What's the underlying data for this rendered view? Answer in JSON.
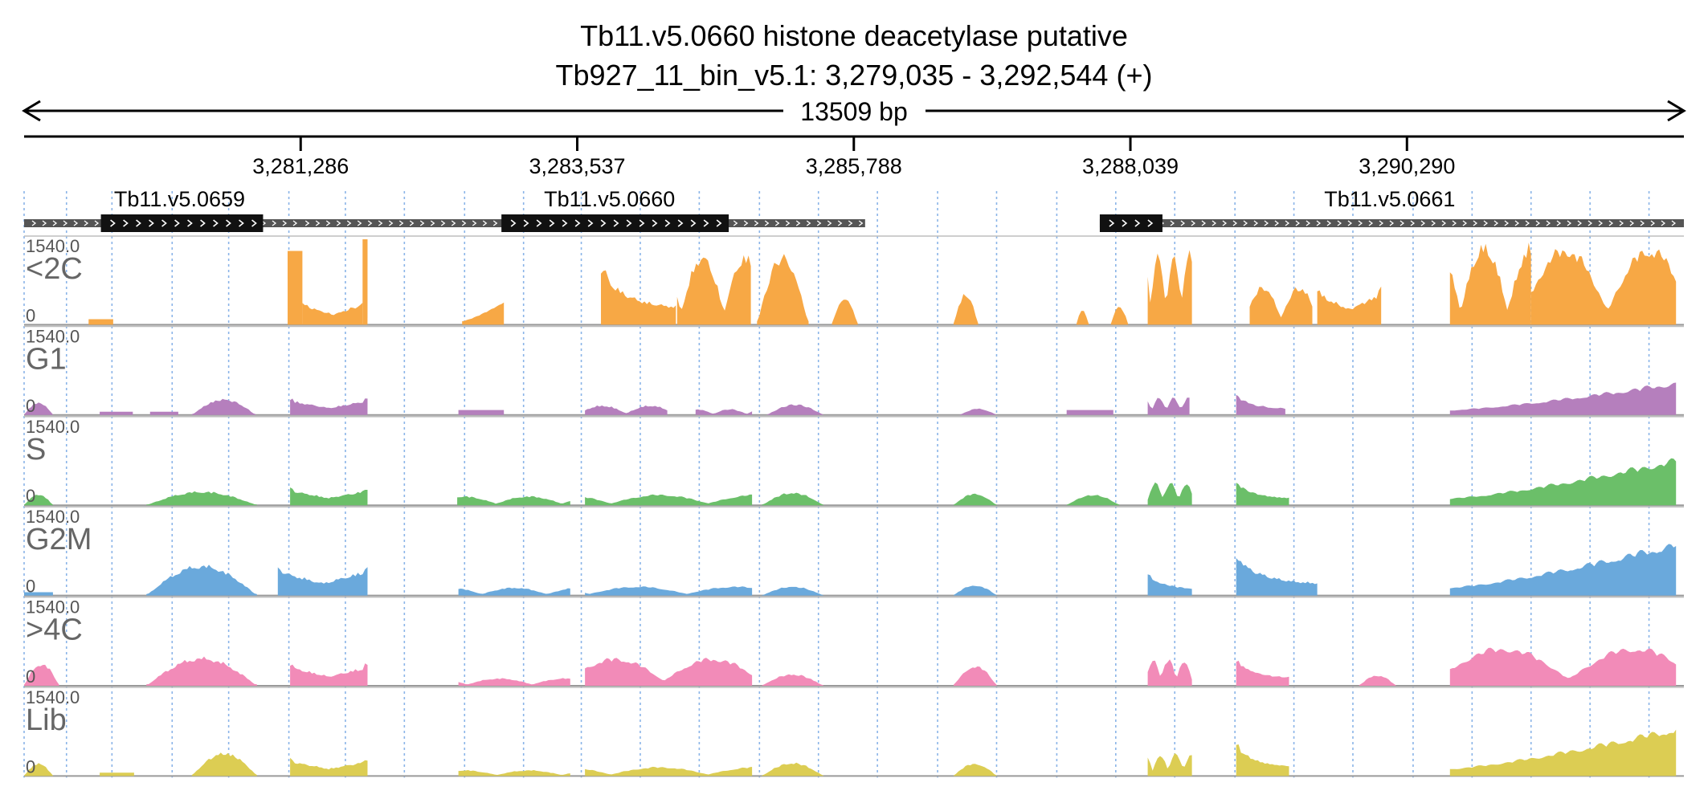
{
  "header": {
    "title": "Tb11.v5.0660  histone deacetylase  putative",
    "subtitle": "Tb927_11_bin_v5.1: 3,279,035 - 3,292,544 (+)",
    "span_label": "13509 bp"
  },
  "chart_data": {
    "type": "area",
    "region": {
      "chrom": "Tb927_11_bin_v5.1",
      "start": 3279035,
      "end": 3292544,
      "strand": "+"
    },
    "x_ticks": [
      {
        "pos": 3281286,
        "label": "3,281,286"
      },
      {
        "pos": 3283537,
        "label": "3,283,537"
      },
      {
        "pos": 3285788,
        "label": "3,285,788"
      },
      {
        "pos": 3288039,
        "label": "3,288,039"
      },
      {
        "pos": 3290290,
        "label": "3,290,290"
      }
    ],
    "genes": [
      {
        "name": "Tb11.v5.0659",
        "start": 3279035,
        "end": 3281350,
        "cds_start": 3279660,
        "cds_end": 3280980,
        "label_pos": 3280300
      },
      {
        "name": "Tb11.v5.0660",
        "start": 3281260,
        "end": 3285880,
        "cds_start": 3282920,
        "cds_end": 3284770,
        "label_pos": 3283800
      },
      {
        "name": "Tb11.v5.0661",
        "start": 3287790,
        "end": 3292544,
        "cds_start": 3287790,
        "cds_end": 3288300,
        "label_pos": 3290150
      }
    ],
    "guide_positions": [
      3279380,
      3279750,
      3280240,
      3280700,
      3281190,
      3281650,
      3282130,
      3282620,
      3283100,
      3283570,
      3284050,
      3284530,
      3285020,
      3285500,
      3285980,
      3286470,
      3286950,
      3287440,
      3287920,
      3288400,
      3288890,
      3289370,
      3289850,
      3290340,
      3290820,
      3291300,
      3291780,
      3292260
    ],
    "y_max_label": "1540.0",
    "y_min_label": "0",
    "y_range": [
      0,
      1540
    ],
    "series": [
      {
        "name": "<2C",
        "color": "#f7a845",
        "segments": [
          {
            "start": 3279560,
            "end": 3279760,
            "peak": 100,
            "shape": "flat"
          },
          {
            "start": 3281180,
            "end": 3281300,
            "peak": 1330,
            "shape": "flat"
          },
          {
            "start": 3281300,
            "end": 3281790,
            "peak": 460,
            "shape": "valley"
          },
          {
            "start": 3281790,
            "end": 3281830,
            "peak": 1540,
            "shape": "flat"
          },
          {
            "start": 3282600,
            "end": 3282940,
            "peak": 470,
            "shape": "ramp-up"
          },
          {
            "start": 3283730,
            "end": 3284340,
            "peak": 1050,
            "shape": "front"
          },
          {
            "start": 3284350,
            "end": 3284950,
            "peak": 1300,
            "shape": "bumps"
          },
          {
            "start": 3285000,
            "end": 3285420,
            "peak": 1300,
            "shape": "hump"
          },
          {
            "start": 3285610,
            "end": 3285820,
            "peak": 540,
            "shape": "hump"
          },
          {
            "start": 3286600,
            "end": 3286800,
            "peak": 590,
            "shape": "hump"
          },
          {
            "start": 3287600,
            "end": 3287700,
            "peak": 300,
            "shape": "hump"
          },
          {
            "start": 3287880,
            "end": 3288020,
            "peak": 360,
            "shape": "hump"
          },
          {
            "start": 3288180,
            "end": 3288540,
            "peak": 1360,
            "shape": "jagged"
          },
          {
            "start": 3289010,
            "end": 3289520,
            "peak": 720,
            "shape": "bumps"
          },
          {
            "start": 3289560,
            "end": 3290080,
            "peak": 700,
            "shape": "valley"
          },
          {
            "start": 3290640,
            "end": 3291300,
            "peak": 1500,
            "shape": "bumps"
          },
          {
            "start": 3291300,
            "end": 3292480,
            "peak": 1450,
            "shape": "bumps"
          }
        ]
      },
      {
        "name": "G1",
        "color": "#b57fbd",
        "segments": [
          {
            "start": 3279035,
            "end": 3279270,
            "peak": 240,
            "shape": "hump"
          },
          {
            "start": 3279650,
            "end": 3279920,
            "peak": 60,
            "shape": "flat"
          },
          {
            "start": 3280060,
            "end": 3280290,
            "peak": 60,
            "shape": "flat"
          },
          {
            "start": 3280400,
            "end": 3280920,
            "peak": 300,
            "shape": "hump"
          },
          {
            "start": 3281200,
            "end": 3281830,
            "peak": 320,
            "shape": "valley"
          },
          {
            "start": 3282570,
            "end": 3282940,
            "peak": 90,
            "shape": "flat"
          },
          {
            "start": 3283600,
            "end": 3284270,
            "peak": 180,
            "shape": "bumps"
          },
          {
            "start": 3284500,
            "end": 3284960,
            "peak": 110,
            "shape": "bumps"
          },
          {
            "start": 3285080,
            "end": 3285540,
            "peak": 200,
            "shape": "hump"
          },
          {
            "start": 3286650,
            "end": 3286950,
            "peak": 120,
            "shape": "hump"
          },
          {
            "start": 3287520,
            "end": 3287900,
            "peak": 90,
            "shape": "flat"
          },
          {
            "start": 3288180,
            "end": 3288520,
            "peak": 330,
            "shape": "jagged"
          },
          {
            "start": 3288900,
            "end": 3289300,
            "peak": 380,
            "shape": "front"
          },
          {
            "start": 3290640,
            "end": 3292480,
            "peak": 620,
            "shape": "ramp-up"
          }
        ]
      },
      {
        "name": "S",
        "color": "#6bbf69",
        "segments": [
          {
            "start": 3279035,
            "end": 3279270,
            "peak": 210,
            "shape": "hump"
          },
          {
            "start": 3280030,
            "end": 3280930,
            "peak": 260,
            "shape": "hump"
          },
          {
            "start": 3281200,
            "end": 3281830,
            "peak": 330,
            "shape": "valley"
          },
          {
            "start": 3282560,
            "end": 3283480,
            "peak": 170,
            "shape": "bumps"
          },
          {
            "start": 3283600,
            "end": 3284960,
            "peak": 200,
            "shape": "bumps"
          },
          {
            "start": 3285040,
            "end": 3285540,
            "peak": 240,
            "shape": "hump"
          },
          {
            "start": 3286600,
            "end": 3286950,
            "peak": 220,
            "shape": "hump"
          },
          {
            "start": 3287520,
            "end": 3287950,
            "peak": 200,
            "shape": "hump"
          },
          {
            "start": 3288180,
            "end": 3288540,
            "peak": 430,
            "shape": "jagged"
          },
          {
            "start": 3288900,
            "end": 3289330,
            "peak": 440,
            "shape": "front"
          },
          {
            "start": 3290640,
            "end": 3292480,
            "peak": 870,
            "shape": "ramp-up"
          }
        ]
      },
      {
        "name": "G2M",
        "color": "#6aa9dc",
        "segments": [
          {
            "start": 3279035,
            "end": 3279270,
            "peak": 60,
            "shape": "flat"
          },
          {
            "start": 3280030,
            "end": 3280930,
            "peak": 570,
            "shape": "hump"
          },
          {
            "start": 3281100,
            "end": 3281830,
            "peak": 550,
            "shape": "valley"
          },
          {
            "start": 3282570,
            "end": 3283480,
            "peak": 150,
            "shape": "bumps"
          },
          {
            "start": 3283600,
            "end": 3284960,
            "peak": 170,
            "shape": "bumps"
          },
          {
            "start": 3285040,
            "end": 3285540,
            "peak": 170,
            "shape": "hump"
          },
          {
            "start": 3286600,
            "end": 3286950,
            "peak": 200,
            "shape": "hump"
          },
          {
            "start": 3288180,
            "end": 3288540,
            "peak": 420,
            "shape": "front"
          },
          {
            "start": 3288900,
            "end": 3289560,
            "peak": 720,
            "shape": "front"
          },
          {
            "start": 3290640,
            "end": 3292480,
            "peak": 1000,
            "shape": "ramp-up"
          }
        ]
      },
      {
        "name": ">4C",
        "color": "#f28bb8",
        "segments": [
          {
            "start": 3279035,
            "end": 3279320,
            "peak": 420,
            "shape": "hump"
          },
          {
            "start": 3280030,
            "end": 3280930,
            "peak": 530,
            "shape": "hump"
          },
          {
            "start": 3281200,
            "end": 3281830,
            "peak": 420,
            "shape": "valley"
          },
          {
            "start": 3282570,
            "end": 3283480,
            "peak": 140,
            "shape": "bumps"
          },
          {
            "start": 3283600,
            "end": 3284960,
            "peak": 520,
            "shape": "bumps"
          },
          {
            "start": 3285040,
            "end": 3285540,
            "peak": 220,
            "shape": "hump"
          },
          {
            "start": 3286600,
            "end": 3286950,
            "peak": 380,
            "shape": "hump"
          },
          {
            "start": 3288180,
            "end": 3288540,
            "peak": 500,
            "shape": "jagged"
          },
          {
            "start": 3288900,
            "end": 3289330,
            "peak": 500,
            "shape": "front"
          },
          {
            "start": 3289900,
            "end": 3290200,
            "peak": 200,
            "shape": "hump"
          },
          {
            "start": 3290640,
            "end": 3292480,
            "peak": 720,
            "shape": "bumps"
          }
        ]
      },
      {
        "name": "Lib",
        "color": "#dccd53",
        "segments": [
          {
            "start": 3279035,
            "end": 3279270,
            "peak": 240,
            "shape": "hump"
          },
          {
            "start": 3279650,
            "end": 3279930,
            "peak": 60,
            "shape": "flat"
          },
          {
            "start": 3280400,
            "end": 3280930,
            "peak": 440,
            "shape": "hump"
          },
          {
            "start": 3281200,
            "end": 3281830,
            "peak": 330,
            "shape": "valley"
          },
          {
            "start": 3282570,
            "end": 3283480,
            "peak": 110,
            "shape": "bumps"
          },
          {
            "start": 3283600,
            "end": 3284960,
            "peak": 170,
            "shape": "bumps"
          },
          {
            "start": 3285040,
            "end": 3285540,
            "peak": 250,
            "shape": "hump"
          },
          {
            "start": 3286600,
            "end": 3286950,
            "peak": 240,
            "shape": "hump"
          },
          {
            "start": 3288180,
            "end": 3288540,
            "peak": 420,
            "shape": "jagged"
          },
          {
            "start": 3288900,
            "end": 3289330,
            "peak": 600,
            "shape": "front"
          },
          {
            "start": 3290640,
            "end": 3292480,
            "peak": 920,
            "shape": "ramp-up"
          }
        ]
      }
    ]
  }
}
